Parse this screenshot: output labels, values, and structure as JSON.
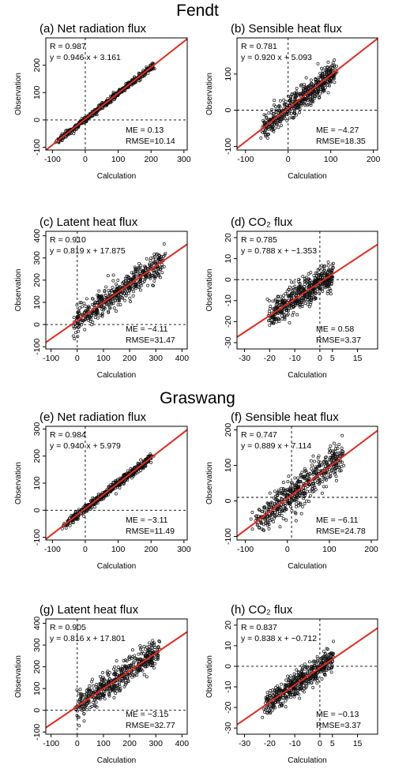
{
  "sites": [
    {
      "title": "Fendt"
    },
    {
      "title": "Graswang"
    }
  ],
  "chart_data": [
    {
      "type": "scatter",
      "title": "(a) Net radiation flux",
      "xlabel": "Calculation",
      "ylabel": "Observation",
      "xlim": [
        -120,
        310
      ],
      "ylim": [
        -110,
        300
      ],
      "xticks": [
        "-100",
        "0",
        "100",
        "200",
        "300"
      ],
      "yticks": [
        "-100",
        "0",
        "100",
        "200"
      ],
      "stats_top": [
        "R = 0.987",
        "y = 0.946 x + 3.161"
      ],
      "stats_bottom": [
        "ME = 0.13",
        "RMSE=10.14"
      ],
      "fit": {
        "slope": 0.946,
        "intercept": 3.161
      },
      "ref_x": 0,
      "ref_y": 0,
      "cloud": {
        "x_range": [
          -80,
          210
        ],
        "noise": 6
      }
    },
    {
      "type": "scatter",
      "title": "(b) Sensible heat flux",
      "xlabel": "Calculation",
      "ylabel": "Observation",
      "xlim": [
        -120,
        210
      ],
      "ylim": [
        -110,
        200
      ],
      "xticks": [
        "-100",
        "0",
        "100",
        "200"
      ],
      "yticks": [
        "-100",
        "0",
        "100"
      ],
      "stats_top": [
        "R = 0.781",
        "y = 0.920 x + 5.093"
      ],
      "stats_bottom": [
        "ME = −4.27",
        "RMSE=18.35"
      ],
      "fit": {
        "slope": 0.92,
        "intercept": 5.093
      },
      "ref_x": 0,
      "ref_y": 0,
      "cloud": {
        "x_range": [
          -60,
          110
        ],
        "noise": 18
      }
    },
    {
      "type": "scatter",
      "title": "(c) Latent heat flux",
      "xlabel": "Calculation",
      "ylabel": "Observation",
      "xlim": [
        -120,
        420
      ],
      "ylim": [
        -110,
        420
      ],
      "xticks": [
        "-100",
        "0",
        "100",
        "200",
        "300",
        "400"
      ],
      "yticks": [
        "-100",
        "0",
        "100",
        "200",
        "300",
        "400"
      ],
      "stats_top": [
        "R = 0.910",
        "y = 0.819 x + 17.875"
      ],
      "stats_bottom": [
        "ME = −4.11",
        "RMSE=31.47"
      ],
      "fit": {
        "slope": 0.819,
        "intercept": 17.875
      },
      "ref_x": 0,
      "ref_y": 0,
      "cloud": {
        "x_range": [
          -10,
          330
        ],
        "noise": 30
      }
    },
    {
      "type": "scatter",
      "title": "(d) CO₂ flux",
      "xlabel": "Calculation",
      "ylabel": "Observation",
      "xlim": [
        -33,
        23
      ],
      "ylim": [
        -33,
        23
      ],
      "xticks": [
        "-30",
        "-20",
        "-10",
        "0",
        "5",
        "15"
      ],
      "yticks": [
        "-30",
        "-20",
        "-10",
        "0",
        "10",
        "20"
      ],
      "stats_top": [
        "R = 0.785",
        "y = 0.788 x + −1.353"
      ],
      "stats_bottom": [
        "ME = 0.58",
        "RMSE=3.37"
      ],
      "fit": {
        "slope": 0.788,
        "intercept": -1.353
      },
      "ref_x": 0,
      "ref_y": 0,
      "cloud": {
        "x_range": [
          -20,
          5
        ],
        "noise": 3.5
      }
    },
    {
      "type": "scatter",
      "title": "(e) Net radiation flux",
      "xlabel": "Calculation",
      "ylabel": "Observation",
      "xlim": [
        -120,
        310
      ],
      "ylim": [
        -110,
        310
      ],
      "xticks": [
        "-100",
        "0",
        "100",
        "200",
        "300"
      ],
      "yticks": [
        "-100",
        "0",
        "100",
        "200",
        "300"
      ],
      "stats_top": [
        "R = 0.984",
        "y = 0.940 x + 5.979"
      ],
      "stats_bottom": [
        "ME = −3.11",
        "RMSE=11.49"
      ],
      "fit": {
        "slope": 0.94,
        "intercept": 5.979
      },
      "ref_x": 0,
      "ref_y": 0,
      "cloud": {
        "x_range": [
          -60,
          200
        ],
        "noise": 8
      }
    },
    {
      "type": "scatter",
      "title": "(f) Sensible heat flux",
      "xlabel": "Calculation",
      "ylabel": "Observation",
      "xlim": [
        -120,
        215
      ],
      "ylim": [
        -110,
        210
      ],
      "xticks": [
        "-100",
        "0",
        "100",
        "200"
      ],
      "yticks": [
        "-100",
        "0",
        "100",
        "200"
      ],
      "stats_top": [
        "R = 0.747",
        "y = 0.889 x + 7.114"
      ],
      "stats_bottom": [
        "ME = −6.11",
        "RMSE=24.78"
      ],
      "fit": {
        "slope": 0.889,
        "intercept": 7.114
      },
      "ref_x": 10,
      "ref_y": 10,
      "cloud": {
        "x_range": [
          -80,
          130
        ],
        "noise": 25
      }
    },
    {
      "type": "scatter",
      "title": "(g) Latent heat flux",
      "xlabel": "Calculation",
      "ylabel": "Observation",
      "xlim": [
        -120,
        420
      ],
      "ylim": [
        -110,
        420
      ],
      "xticks": [
        "-100",
        "0",
        "100",
        "200",
        "300",
        "400"
      ],
      "yticks": [
        "-100",
        "0",
        "100",
        "200",
        "300",
        "400"
      ],
      "stats_top": [
        "R = 0.905",
        "y = 0.816 x + 17.801"
      ],
      "stats_bottom": [
        "ME = −3.15",
        "RMSE=32.77"
      ],
      "fit": {
        "slope": 0.816,
        "intercept": 17.801
      },
      "ref_x": 0,
      "ref_y": 0,
      "cloud": {
        "x_range": [
          -5,
          310
        ],
        "noise": 30
      }
    },
    {
      "type": "scatter",
      "title": "(h) CO₂ flux",
      "xlabel": "Calculation",
      "ylabel": "Observation",
      "xlim": [
        -33,
        23
      ],
      "ylim": [
        -33,
        23
      ],
      "xticks": [
        "-30",
        "-20",
        "-10",
        "0",
        "5",
        "15"
      ],
      "yticks": [
        "-30",
        "-20",
        "-10",
        "0",
        "10",
        "20"
      ],
      "stats_top": [
        "R = 0.837",
        "y = 0.838 x + −0.712"
      ],
      "stats_bottom": [
        "ME = −0.13",
        "RMSE=3.37"
      ],
      "fit": {
        "slope": 0.838,
        "intercept": -0.712
      },
      "ref_x": 0,
      "ref_y": 0,
      "cloud": {
        "x_range": [
          -22,
          5
        ],
        "noise": 3
      }
    }
  ],
  "colors": {
    "fit_line": "#e8281e",
    "points": "#111111",
    "frame": "#000000"
  }
}
